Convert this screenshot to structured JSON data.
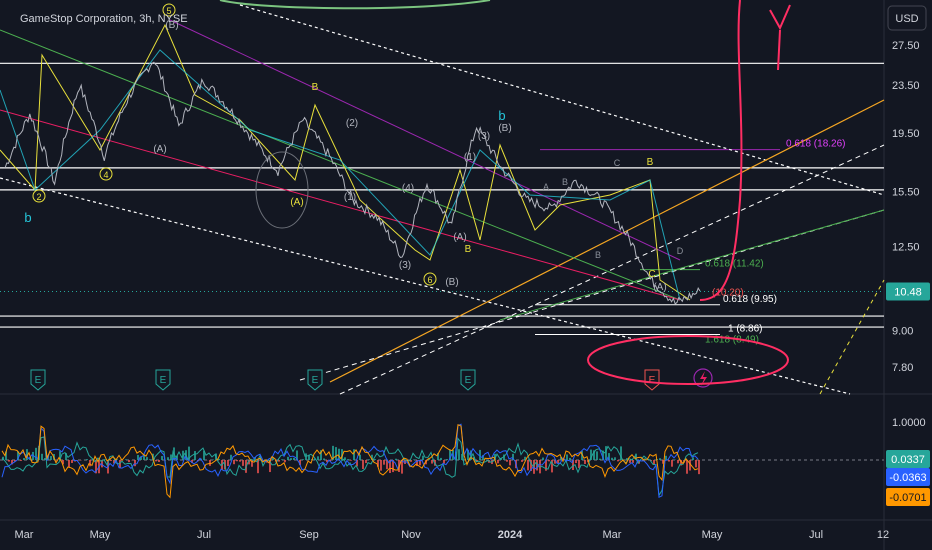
{
  "symbol": {
    "title": "GameStop Corporation, 3h, NYSE"
  },
  "currency_label": "USD",
  "chart_data": [
    {
      "type": "line",
      "name": "price_pane",
      "scale": "log",
      "ylim": [
        7.0,
        32.0
      ],
      "yticks": [
        "27.50",
        "23.50",
        "19.50",
        "15.50",
        "12.50",
        "10.48",
        "9.00",
        "7.80"
      ],
      "xticks": [
        "Mar",
        "May",
        "Jul",
        "Sep",
        "Nov",
        "2024",
        "Mar",
        "May",
        "Jul",
        "12"
      ],
      "last_price": "10.48",
      "price_path": [
        [
          "Mar",
          17.0
        ],
        [
          "Mar",
          21.0
        ],
        [
          "Mar",
          16.0
        ],
        [
          "Apr",
          23.5
        ],
        [
          "Apr",
          17.8
        ],
        [
          "May",
          22.5
        ],
        [
          "Jun",
          26.0
        ],
        [
          "Jun",
          20.0
        ],
        [
          "Jul",
          24.0
        ],
        [
          "Jul",
          21.5
        ],
        [
          "Aug",
          19.0
        ],
        [
          "Aug",
          16.8
        ],
        [
          "Sep",
          20.5
        ],
        [
          "Sep",
          18.0
        ],
        [
          "Oct",
          15.0
        ],
        [
          "Oct",
          14.0
        ],
        [
          "Nov",
          12.0
        ],
        [
          "Nov",
          16.0
        ],
        [
          "Dec",
          13.5
        ],
        [
          "Dec",
          20.0
        ],
        [
          "Jan",
          17.0
        ],
        [
          "Jan",
          15.0
        ],
        [
          "Feb",
          14.5
        ],
        [
          "Feb",
          16.2
        ],
        [
          "Mar",
          15.0
        ],
        [
          "Mar",
          13.2
        ],
        [
          "Apr",
          11.0
        ],
        [
          "Apr",
          10.0
        ],
        [
          "Apr",
          10.5
        ]
      ],
      "horizontal_levels": [
        25.6,
        17.0,
        15.6,
        9.52,
        9.12
      ],
      "fib_labels": [
        {
          "text": "0.618 (18.26)",
          "price": 18.26,
          "color": "#e040fb"
        },
        {
          "text": "0.618 (11.42)",
          "price": 11.42,
          "color": "#4caf50"
        },
        {
          "text": "(10.20)",
          "price": 10.2,
          "color": "#ef5350"
        },
        {
          "text": "0.618 (9.95)",
          "price": 9.95,
          "color": "#ffffff"
        },
        {
          "text": "1 (8.86)",
          "price": 8.86,
          "color": "#ffffff"
        },
        {
          "text": "1.618 (8.49)",
          "price": 8.49,
          "color": "#4caf50"
        }
      ],
      "wave_labels": [
        "b",
        "5",
        "(B)",
        "2",
        "4",
        "(A)",
        "B",
        "(2)",
        "(A)",
        "(1)",
        "(4)",
        "(3)",
        "6",
        "(B)",
        "(A)",
        "B",
        "b",
        "(1)",
        "(3)",
        "(B)",
        "A",
        "B",
        "C",
        "B",
        "D",
        "(A)",
        "C",
        "B"
      ],
      "earnings_markers": [
        "E",
        "E",
        "E",
        "E",
        "E"
      ]
    },
    {
      "type": "line",
      "name": "oscillator_pane",
      "ylim": [
        -0.12,
        0.11
      ],
      "yticks": [
        "1.0000"
      ],
      "series": [
        {
          "values_label": "0.0337",
          "color": "#26a69a"
        },
        {
          "values_label": "-0.0363",
          "color": "#2962ff"
        },
        {
          "values_label": "-0.0701",
          "color": "#ff9800"
        }
      ]
    }
  ],
  "colors": {
    "background": "#131722",
    "text": "#d1d4dc",
    "grid": "#1e222d",
    "trend_white": "#ffffff",
    "trend_orange": "#f5a623",
    "trend_green": "#4caf50",
    "trend_yellow": "#e8e03b",
    "trend_cyan": "#26c6da",
    "trend_purple": "#9c27b0",
    "trend_pink": "#e91e63",
    "drawing_red": "#ff2e63",
    "drawing_green": "#7bc47f",
    "last_price_badge": "#26a69a"
  }
}
